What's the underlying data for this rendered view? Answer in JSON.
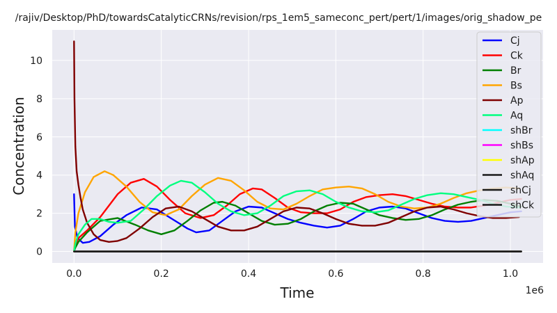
{
  "chart_data": {
    "type": "line",
    "title": "/rajiv/Desktop/PhD/towardsCatalyticCRNs/revision/rps_1em5_sameconc_pert/pert/1/images/orig_shadow_pe",
    "xlabel": "Time",
    "ylabel": "Concentration",
    "x_offset_text": "1e6",
    "xlim": [
      -50000,
      1075000
    ],
    "ylim": [
      -0.6,
      11.6
    ],
    "xticks": [
      0,
      200000,
      400000,
      600000,
      800000,
      1000000
    ],
    "xtick_labels": [
      "0.0",
      "0.2",
      "0.4",
      "0.6",
      "0.8",
      "1.0"
    ],
    "yticks": [
      0,
      2,
      4,
      6,
      8,
      10
    ],
    "ytick_labels": [
      "0",
      "2",
      "4",
      "6",
      "8",
      "10"
    ],
    "grid": true,
    "background": "#eaeaf2",
    "legend_position": "top-right",
    "series": [
      {
        "name": "Cj",
        "color": "#0000ff",
        "x": [
          0,
          2000,
          8000,
          20000,
          35000,
          60000,
          90000,
          120000,
          155000,
          190000,
          225000,
          260000,
          280000,
          310000,
          340000,
          370000,
          400000,
          430000,
          460000,
          490000,
          520000,
          550000,
          580000,
          610000,
          640000,
          670000,
          700000,
          730000,
          760000,
          790000,
          820000,
          850000,
          880000,
          910000,
          940000,
          970000,
          1000000,
          1025000
        ],
        "y": [
          3.0,
          1.3,
          0.7,
          0.45,
          0.5,
          0.8,
          1.4,
          1.9,
          2.3,
          2.2,
          1.7,
          1.2,
          1.0,
          1.1,
          1.6,
          2.1,
          2.35,
          2.3,
          2.0,
          1.7,
          1.5,
          1.35,
          1.25,
          1.35,
          1.7,
          2.1,
          2.3,
          2.35,
          2.25,
          2.0,
          1.75,
          1.6,
          1.55,
          1.6,
          1.75,
          1.9,
          2.05,
          2.1
        ]
      },
      {
        "name": "Ck",
        "color": "#ff0000",
        "x": [
          0,
          3000,
          10000,
          30000,
          60000,
          100000,
          130000,
          160000,
          190000,
          220000,
          255000,
          290000,
          320000,
          350000,
          380000,
          410000,
          430000,
          460000,
          490000,
          520000,
          550000,
          580000,
          610000,
          640000,
          670000,
          700000,
          730000,
          760000,
          790000,
          820000,
          850000,
          880000,
          910000,
          940000,
          970000,
          1000000,
          1025000
        ],
        "y": [
          0.0,
          0.3,
          0.7,
          1.1,
          1.8,
          3.0,
          3.6,
          3.8,
          3.4,
          2.7,
          2.0,
          1.75,
          1.9,
          2.4,
          3.0,
          3.3,
          3.25,
          2.8,
          2.3,
          2.05,
          2.0,
          2.0,
          2.2,
          2.6,
          2.85,
          2.95,
          3.0,
          2.9,
          2.7,
          2.5,
          2.35,
          2.3,
          2.3,
          2.4,
          2.55,
          2.7,
          2.75
        ]
      },
      {
        "name": "Br",
        "color": "#007f00",
        "x": [
          0,
          3000,
          10000,
          30000,
          60000,
          100000,
          140000,
          170000,
          200000,
          230000,
          260000,
          290000,
          320000,
          340000,
          370000,
          400000,
          430000,
          460000,
          490000,
          520000,
          550000,
          580000,
          610000,
          640000,
          670000,
          700000,
          730000,
          760000,
          790000,
          820000,
          850000,
          880000,
          910000,
          940000,
          970000,
          1000000,
          1025000
        ],
        "y": [
          0.0,
          0.2,
          0.5,
          1.0,
          1.6,
          1.75,
          1.4,
          1.1,
          0.9,
          1.1,
          1.6,
          2.15,
          2.55,
          2.6,
          2.4,
          2.0,
          1.6,
          1.4,
          1.45,
          1.7,
          2.1,
          2.4,
          2.55,
          2.5,
          2.2,
          1.9,
          1.75,
          1.65,
          1.7,
          1.9,
          2.2,
          2.45,
          2.6,
          2.7,
          2.65,
          2.5,
          2.35
        ]
      },
      {
        "name": "Bs",
        "color": "#ffa500",
        "x": [
          0,
          3000,
          10000,
          25000,
          45000,
          70000,
          90000,
          120000,
          150000,
          180000,
          210000,
          240000,
          270000,
          300000,
          330000,
          360000,
          390000,
          420000,
          450000,
          480000,
          510000,
          540000,
          570000,
          600000,
          630000,
          660000,
          690000,
          720000,
          750000,
          780000,
          810000,
          840000,
          870000,
          900000,
          930000,
          960000,
          990000,
          1020000
        ],
        "y": [
          0.0,
          1.0,
          2.0,
          3.1,
          3.9,
          4.2,
          4.0,
          3.4,
          2.6,
          2.05,
          1.9,
          2.2,
          2.9,
          3.5,
          3.85,
          3.7,
          3.2,
          2.6,
          2.25,
          2.2,
          2.5,
          2.9,
          3.25,
          3.35,
          3.4,
          3.3,
          3.0,
          2.6,
          2.35,
          2.25,
          2.3,
          2.5,
          2.8,
          3.05,
          3.2,
          3.3,
          3.35,
          3.3
        ]
      },
      {
        "name": "Ap",
        "color": "#7f0000",
        "x": [
          0,
          1000,
          3000,
          6000,
          10000,
          15000,
          20000,
          30000,
          45000,
          60000,
          80000,
          100000,
          120000,
          150000,
          180000,
          210000,
          240000,
          270000,
          300000,
          330000,
          360000,
          390000,
          420000,
          450000,
          480000,
          510000,
          540000,
          570000,
          600000,
          630000,
          660000,
          690000,
          720000,
          750000,
          780000,
          810000,
          840000,
          870000,
          900000,
          930000,
          960000,
          990000,
          1020000
        ],
        "y": [
          11.0,
          8.0,
          5.5,
          4.2,
          3.5,
          2.8,
          2.2,
          1.5,
          0.9,
          0.6,
          0.5,
          0.55,
          0.7,
          1.2,
          1.8,
          2.25,
          2.35,
          2.1,
          1.7,
          1.3,
          1.1,
          1.1,
          1.3,
          1.7,
          2.1,
          2.3,
          2.25,
          2.0,
          1.7,
          1.45,
          1.35,
          1.35,
          1.5,
          1.8,
          2.1,
          2.3,
          2.35,
          2.2,
          2.0,
          1.85,
          1.75,
          1.75,
          1.8
        ]
      },
      {
        "name": "Aq",
        "color": "#00ff7f",
        "x": [
          0,
          3000,
          10000,
          25000,
          40000,
          60000,
          80000,
          100000,
          130000,
          160000,
          190000,
          220000,
          245000,
          270000,
          300000,
          330000,
          360000,
          390000,
          420000,
          450000,
          480000,
          510000,
          540000,
          570000,
          600000,
          630000,
          660000,
          690000,
          720000,
          750000,
          780000,
          810000,
          840000,
          870000,
          900000,
          930000,
          960000,
          990000,
          1020000
        ],
        "y": [
          0.0,
          0.4,
          0.9,
          1.4,
          1.7,
          1.7,
          1.55,
          1.5,
          1.6,
          2.2,
          2.9,
          3.45,
          3.7,
          3.6,
          3.1,
          2.5,
          2.1,
          1.9,
          2.0,
          2.4,
          2.9,
          3.15,
          3.2,
          3.0,
          2.6,
          2.3,
          2.1,
          2.05,
          2.15,
          2.45,
          2.75,
          2.95,
          3.05,
          3.0,
          2.85,
          2.7,
          2.5,
          2.35,
          2.3
        ]
      },
      {
        "name": "shBr",
        "color": "#00ffff",
        "x": [
          0,
          1025000
        ],
        "y": [
          0,
          0
        ]
      },
      {
        "name": "shBs",
        "color": "#ff00ff",
        "x": [
          0,
          1025000
        ],
        "y": [
          0,
          0
        ]
      },
      {
        "name": "shAp",
        "color": "#ffff00",
        "x": [
          0,
          1025000
        ],
        "y": [
          0,
          0
        ]
      },
      {
        "name": "shAq",
        "color": "#1a1a1a",
        "x": [
          0,
          1025000
        ],
        "y": [
          0,
          0
        ]
      },
      {
        "name": "shCj",
        "color": "#1a1a1a",
        "x": [
          0,
          1025000
        ],
        "y": [
          0,
          0
        ]
      },
      {
        "name": "shCk",
        "color": "#1a1a1a",
        "x": [
          0,
          1025000
        ],
        "y": [
          0,
          0
        ]
      }
    ]
  }
}
